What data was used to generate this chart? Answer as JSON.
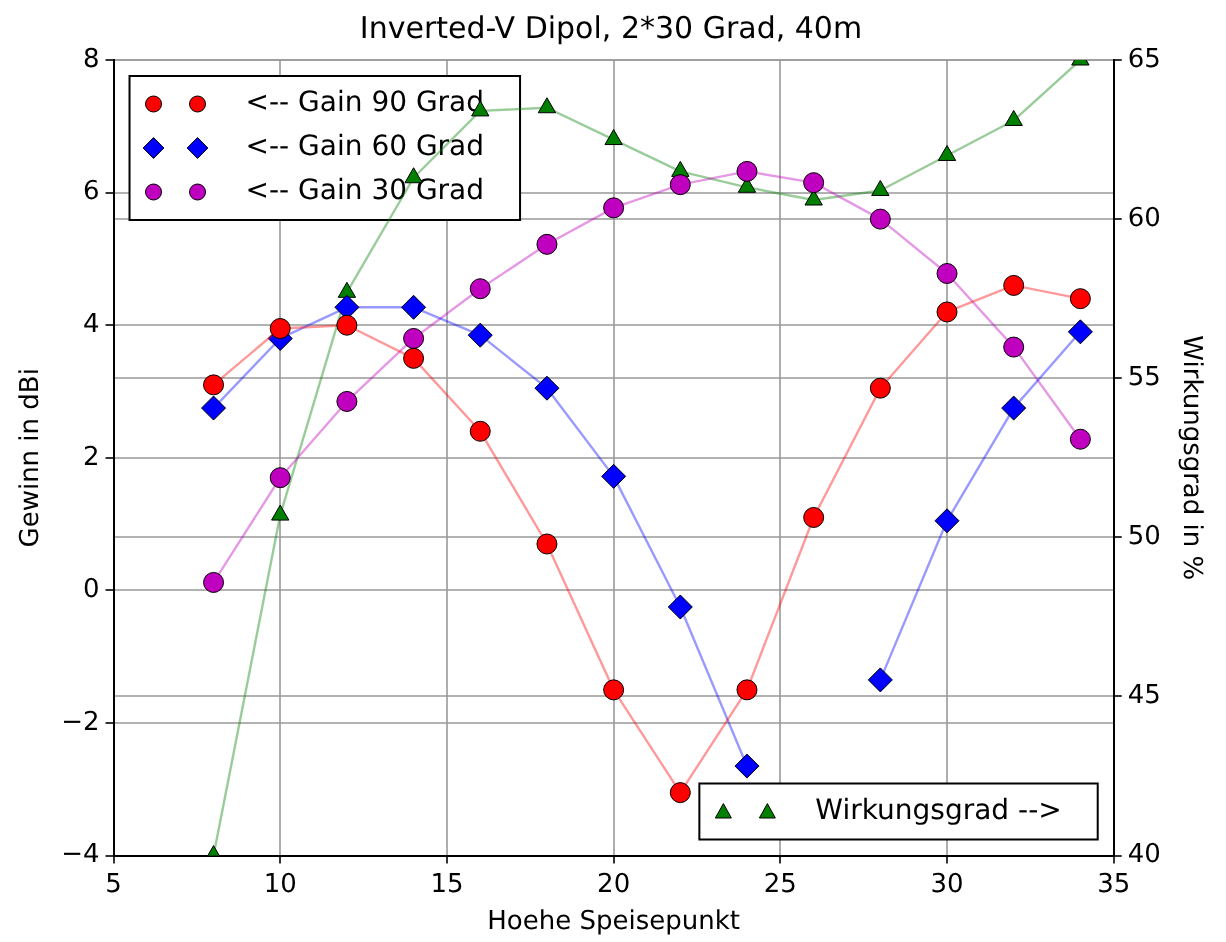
{
  "chart_data": {
    "type": "line",
    "title": "Inverted-V Dipol, 2*30 Grad, 40m",
    "xlabel": "Hoehe Speisepunkt",
    "ylabel": "Gewinn in dBi",
    "y2label": "Wirkungsgrad in %",
    "x": [
      8,
      10,
      12,
      14,
      16,
      18,
      20,
      22,
      24,
      26,
      28,
      30,
      32,
      34
    ],
    "series": [
      {
        "name": "<-- Gain 90 Grad",
        "color": "#ff0000",
        "marker": "circle",
        "values": [
          3.1,
          3.95,
          4.0,
          3.5,
          2.4,
          0.7,
          -1.5,
          -3.05,
          -1.5,
          1.1,
          3.05,
          4.2,
          4.6,
          4.4
        ]
      },
      {
        "name": "<-- Gain 60 Grad",
        "color": "#0000ff",
        "marker": "diamond",
        "values": [
          2.75,
          3.8,
          4.27,
          4.27,
          3.85,
          3.05,
          1.72,
          -0.25,
          -2.65,
          null,
          -1.35,
          1.05,
          2.75,
          3.9
        ]
      },
      {
        "name": "<-- Gain 30 Grad",
        "color": "#bf00bf",
        "marker": "circle",
        "values": [
          0.12,
          1.7,
          2.85,
          3.8,
          4.55,
          5.22,
          5.77,
          6.12,
          6.32,
          6.15,
          5.6,
          4.78,
          3.67,
          2.28
        ]
      },
      {
        "name": "Wirkungsgrad -->",
        "color": "#007f00",
        "marker": "triangle",
        "axis": "y2",
        "values": [
          40,
          50.7,
          57.7,
          61.3,
          63.4,
          63.5,
          62.5,
          61.5,
          61.0,
          60.6,
          60.9,
          62.0,
          63.1,
          65
        ]
      }
    ],
    "xlim": [
      5,
      35
    ],
    "xticks": [
      5,
      10,
      15,
      20,
      25,
      30,
      35
    ],
    "ylim": [
      -4,
      8
    ],
    "yticks": [
      -4,
      -2,
      0,
      2,
      4,
      6,
      8
    ],
    "y2lim": [
      40,
      65
    ],
    "y2ticks": [
      40,
      45,
      50,
      55,
      60,
      65
    ],
    "grid": true,
    "legend": "top left"
  }
}
